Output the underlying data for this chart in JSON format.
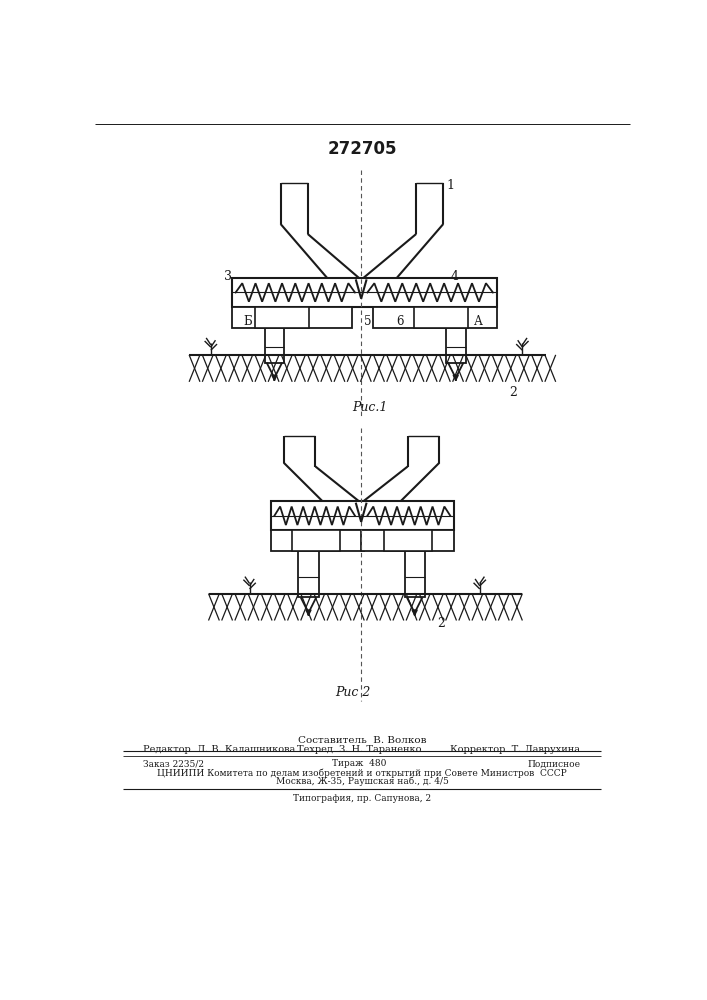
{
  "title": "272705",
  "fig1_caption": "Рис.1",
  "fig2_caption": "Рис 2",
  "bottom_text_line1": "Составитель  В. Волков",
  "bottom_text_line2_left": "Редактор  Л. В. Калашникова",
  "bottom_text_line2_mid": "Техред  З. Н. Тараненко",
  "bottom_text_line2_right": "Корректор  Т. Лаврухина",
  "bottom_text_line3_left": "Заказ 2235/2",
  "bottom_text_line3_mid": "Тираж  480",
  "bottom_text_line3_right": "Подписное",
  "bottom_text_line4": "ЦНИИПИ Комитета по делам изобретений и открытий при Совете Министров  СССР",
  "bottom_text_line5": "Москва, Ж-35, Раушская наб., д. 4/5",
  "bottom_text_line6": "Типография, пр. Сапунова, 2",
  "bg_color": "#ffffff",
  "line_color": "#1a1a1a"
}
